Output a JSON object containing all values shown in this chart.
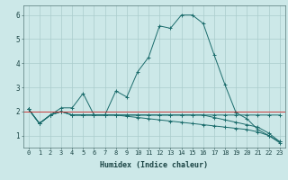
{
  "xlabel": "Humidex (Indice chaleur)",
  "background_color": "#cce8e8",
  "grid_color": "#aacccc",
  "line_color": "#1a6b6b",
  "x_values": [
    0,
    1,
    2,
    3,
    4,
    5,
    6,
    7,
    8,
    9,
    10,
    11,
    12,
    13,
    14,
    15,
    16,
    17,
    18,
    19,
    20,
    21,
    22,
    23
  ],
  "series1": [
    2.1,
    1.5,
    1.85,
    2.15,
    2.15,
    2.75,
    1.85,
    1.85,
    2.85,
    2.6,
    3.65,
    4.25,
    5.55,
    5.45,
    6.0,
    6.0,
    5.65,
    4.35,
    3.1,
    1.95,
    1.7,
    1.25,
    1.0,
    0.7
  ],
  "series2": [
    2.1,
    1.5,
    1.85,
    2.0,
    1.85,
    1.85,
    1.85,
    1.85,
    1.85,
    1.85,
    1.85,
    1.85,
    1.85,
    1.85,
    1.85,
    1.85,
    1.85,
    1.85,
    1.85,
    1.85,
    1.85,
    1.85,
    1.85,
    1.85
  ],
  "series3": [
    2.1,
    1.5,
    1.85,
    2.0,
    1.85,
    1.85,
    1.85,
    1.85,
    1.85,
    1.85,
    1.85,
    1.85,
    1.85,
    1.85,
    1.85,
    1.85,
    1.85,
    1.75,
    1.65,
    1.55,
    1.45,
    1.35,
    1.1,
    0.75
  ],
  "series4": [
    2.1,
    1.5,
    1.85,
    2.0,
    1.85,
    1.85,
    1.85,
    1.85,
    1.85,
    1.8,
    1.75,
    1.7,
    1.65,
    1.6,
    1.55,
    1.5,
    1.45,
    1.4,
    1.35,
    1.3,
    1.25,
    1.15,
    1.0,
    0.75
  ],
  "ylim": [
    0.5,
    6.4
  ],
  "xlim": [
    -0.5,
    23.5
  ],
  "yticks": [
    1,
    2,
    3,
    4,
    5,
    6
  ],
  "xticks": [
    0,
    1,
    2,
    3,
    4,
    5,
    6,
    7,
    8,
    9,
    10,
    11,
    12,
    13,
    14,
    15,
    16,
    17,
    18,
    19,
    20,
    21,
    22,
    23
  ],
  "xlabel_fontsize": 6.0,
  "tick_fontsize": 5.0
}
